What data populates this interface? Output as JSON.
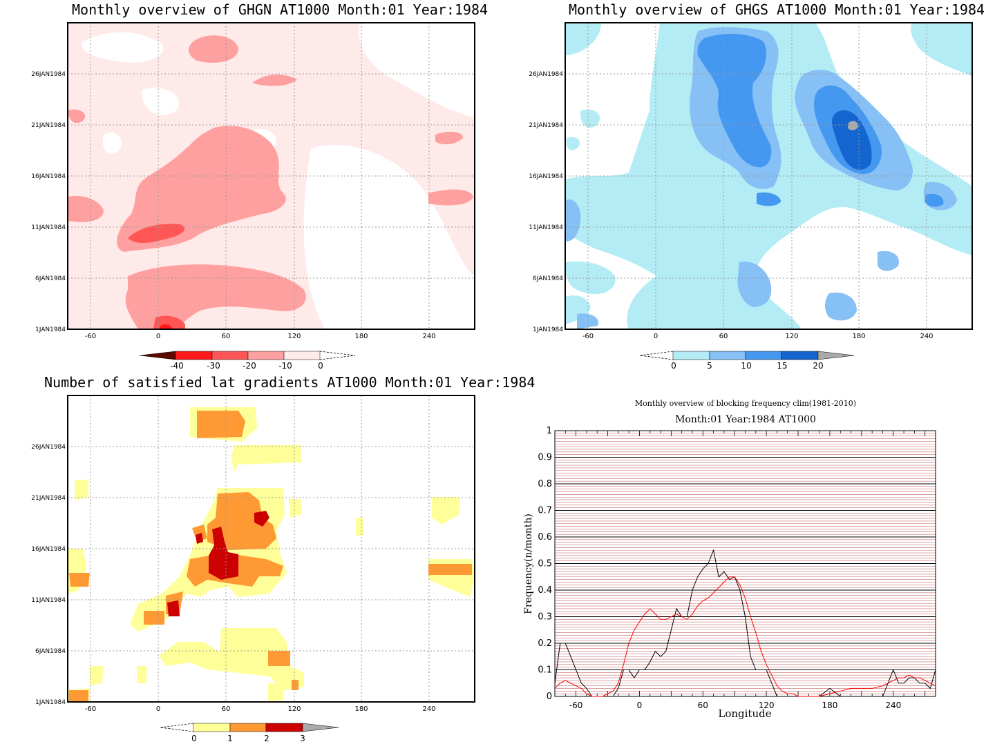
{
  "panels": {
    "ghgn": {
      "title": "Monthly overview of GHGN AT1000 Month:01 Year:1984",
      "colorbar": {
        "labels": [
          "-40",
          "-30",
          "-20",
          "-10",
          "0"
        ],
        "colors": [
          "#5c0a00",
          "#ff1a1a",
          "#ff5555",
          "#ffa0a0",
          "#ffeaea"
        ]
      }
    },
    "ghgs": {
      "title": "Monthly overview of GHGS AT1000 Month:01 Year:1984",
      "colorbar": {
        "labels": [
          "0",
          "5",
          "10",
          "15",
          "20"
        ],
        "colors": [
          "#b4ecf5",
          "#86c0f5",
          "#4598f0",
          "#1565d0",
          "#aaaaaa"
        ]
      }
    },
    "satisfied": {
      "title": "Number of satisfied lat gradients AT1000 Month:01 Year:1984",
      "colorbar": {
        "labels": [
          "0",
          "1",
          "2",
          "3"
        ],
        "colors": [
          "#ffff99",
          "#ff9933",
          "#cc0000",
          "#aaaaaa"
        ]
      }
    },
    "map_axes": {
      "y_ticks": [
        "1JAN1984",
        "6JAN1984",
        "11JAN1984",
        "16JAN1984",
        "21JAN1984",
        "26JAN1984"
      ],
      "x_ticks": [
        "-60",
        "0",
        "60",
        "120",
        "180",
        "240"
      ]
    },
    "frequency": {
      "title": "Monthly overview of blocking frequency clim(1981-2010)",
      "subtitle": "Month:01 Year:1984  AT1000",
      "xlabel": "Longitude",
      "ylabel": "Frequency(n/month)",
      "y_ticks": [
        "0",
        "0.1",
        "0.2",
        "0.3",
        "0.4",
        "0.5",
        "0.6",
        "0.7",
        "0.8",
        "0.9",
        "1"
      ],
      "x_ticks": [
        "-60",
        "0",
        "60",
        "120",
        "180",
        "240"
      ]
    }
  },
  "chart_data": [
    {
      "type": "heatmap",
      "title": "Monthly overview of GHGN AT1000 Month:01 Year:1984",
      "x_range": [
        -75,
        285
      ],
      "y_range": [
        "1JAN1984",
        "31JAN1984"
      ],
      "levels": [
        -40,
        -30,
        -20,
        -10,
        0
      ]
    },
    {
      "type": "heatmap",
      "title": "Monthly overview of GHGS AT1000 Month:01 Year:1984",
      "x_range": [
        -75,
        285
      ],
      "y_range": [
        "1JAN1984",
        "31JAN1984"
      ],
      "levels": [
        0,
        5,
        10,
        15,
        20
      ]
    },
    {
      "type": "heatmap",
      "title": "Number of satisfied lat gradients AT1000 Month:01 Year:1984",
      "x_range": [
        -75,
        285
      ],
      "y_range": [
        "1JAN1984",
        "31JAN1984"
      ],
      "levels": [
        0,
        1,
        2,
        3
      ]
    },
    {
      "type": "line",
      "title": "Monthly overview of blocking frequency clim(1981-2010)",
      "subtitle": "Month:01 Year:1984  AT1000",
      "xlabel": "Longitude",
      "ylabel": "Frequency(n/month)",
      "xlim": [
        -80,
        280
      ],
      "ylim": [
        0,
        1
      ],
      "series": [
        {
          "color": "#000000",
          "x": [
            -80,
            -75,
            -70,
            -65,
            -60,
            -55,
            -50,
            -45,
            -40,
            -35,
            -30,
            -25,
            -20,
            -15,
            -10,
            -5,
            0,
            5,
            10,
            15,
            20,
            25,
            30,
            35,
            40,
            45,
            50,
            55,
            60,
            65,
            70,
            75,
            80,
            85,
            90,
            95,
            100,
            105,
            110,
            115,
            120,
            125,
            130,
            135,
            140,
            145,
            150,
            160,
            170,
            180,
            190,
            200,
            210,
            220,
            230,
            240,
            245,
            250,
            255,
            260,
            265,
            270,
            275,
            280
          ],
          "values": [
            0.05,
            0.2,
            0.2,
            0.15,
            0.1,
            0.05,
            0.03,
            0.0,
            0.0,
            0.0,
            0.0,
            0.0,
            0.03,
            0.1,
            0.1,
            0.07,
            0.1,
            0.1,
            0.13,
            0.17,
            0.15,
            0.17,
            0.25,
            0.33,
            0.3,
            0.3,
            0.4,
            0.45,
            0.48,
            0.5,
            0.55,
            0.45,
            0.47,
            0.44,
            0.45,
            0.4,
            0.3,
            0.15,
            0.1,
            0.1,
            0.1,
            0.05,
            0.0,
            0.0,
            0.0,
            0.0,
            0.0,
            0.0,
            0.0,
            0.03,
            0.0,
            0.0,
            0.0,
            0.0,
            0.0,
            0.1,
            0.05,
            0.05,
            0.07,
            0.07,
            0.05,
            0.05,
            0.03,
            0.1
          ]
        },
        {
          "color": "#ff0000",
          "x": [
            -80,
            -75,
            -70,
            -65,
            -60,
            -55,
            -50,
            -45,
            -40,
            -35,
            -30,
            -25,
            -20,
            -15,
            -10,
            -5,
            0,
            5,
            10,
            15,
            20,
            25,
            30,
            35,
            40,
            45,
            50,
            55,
            60,
            65,
            70,
            75,
            80,
            85,
            90,
            95,
            100,
            105,
            110,
            115,
            120,
            125,
            130,
            135,
            140,
            145,
            150,
            160,
            170,
            180,
            190,
            200,
            210,
            220,
            230,
            240,
            245,
            250,
            255,
            260,
            265,
            270,
            275,
            280
          ],
          "values": [
            0.03,
            0.05,
            0.06,
            0.05,
            0.04,
            0.03,
            0.01,
            0.0,
            0.0,
            0.0,
            0.01,
            0.02,
            0.05,
            0.12,
            0.2,
            0.25,
            0.28,
            0.31,
            0.33,
            0.31,
            0.29,
            0.29,
            0.3,
            0.31,
            0.3,
            0.29,
            0.31,
            0.34,
            0.36,
            0.37,
            0.39,
            0.41,
            0.43,
            0.45,
            0.45,
            0.42,
            0.37,
            0.3,
            0.24,
            0.17,
            0.12,
            0.08,
            0.04,
            0.02,
            0.01,
            0.01,
            0.0,
            0.0,
            0.0,
            0.01,
            0.02,
            0.03,
            0.03,
            0.03,
            0.04,
            0.06,
            0.07,
            0.07,
            0.08,
            0.07,
            0.07,
            0.06,
            0.05,
            0.04
          ]
        }
      ]
    }
  ]
}
